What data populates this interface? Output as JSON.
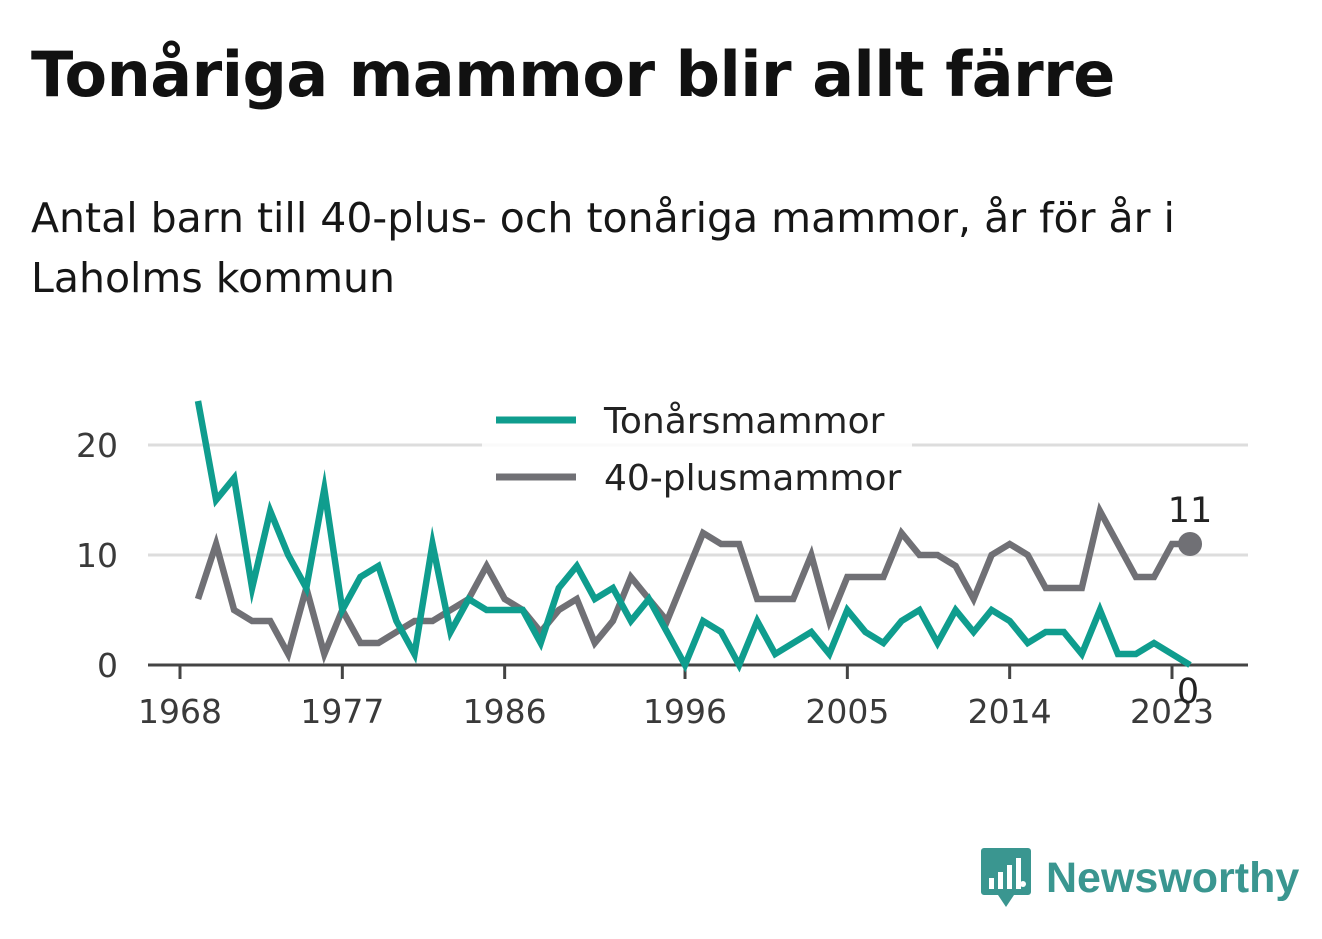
{
  "title": "Tonåriga mammor blir allt färre",
  "subtitle": "Antal barn till 40-plus- och tonåriga mammor, år för år i Laholms kommun",
  "brand": {
    "name": "Newsworthy",
    "icon": "newsworthy-logo-icon",
    "color": "#3a9690"
  },
  "colors": {
    "teen": "#0f9d8e",
    "forty": "#707075",
    "grid": "#dddddd",
    "axis": "#444444"
  },
  "chart_data": {
    "type": "line",
    "title": "",
    "xlabel": "",
    "ylabel": "",
    "x": [
      1969,
      1970,
      1971,
      1972,
      1973,
      1974,
      1975,
      1976,
      1977,
      1978,
      1979,
      1980,
      1981,
      1982,
      1983,
      1984,
      1985,
      1986,
      1987,
      1988,
      1989,
      1990,
      1991,
      1992,
      1993,
      1994,
      1995,
      1996,
      1997,
      1998,
      1999,
      2000,
      2001,
      2002,
      2003,
      2004,
      2005,
      2006,
      2007,
      2008,
      2009,
      2010,
      2011,
      2012,
      2013,
      2014,
      2015,
      2016,
      2017,
      2018,
      2019,
      2020,
      2021,
      2022,
      2023,
      2024
    ],
    "xticks": [
      1968,
      1977,
      1986,
      1996,
      2005,
      2014,
      2023
    ],
    "xticklabels": [
      "1968",
      "1977",
      "1986",
      "1996",
      "2005",
      "2014",
      "2023"
    ],
    "xlim": [
      1968,
      2027
    ],
    "yticks": [
      0,
      10,
      20
    ],
    "yticklabels": [
      "0",
      "10",
      "20"
    ],
    "ylim": [
      0,
      25
    ],
    "grid": "horizontal",
    "legend": "top-center",
    "series": [
      {
        "name": "Tonårsmammor",
        "color": "#0f9d8e",
        "values": [
          24,
          15,
          17,
          7,
          14,
          10,
          7,
          16,
          5,
          8,
          9,
          4,
          1,
          11,
          3,
          6,
          5,
          5,
          5,
          2,
          7,
          9,
          6,
          7,
          4,
          6,
          3,
          0,
          4,
          3,
          0,
          4,
          1,
          2,
          3,
          1,
          5,
          3,
          2,
          4,
          5,
          2,
          5,
          3,
          5,
          4,
          2,
          3,
          3,
          1,
          5,
          1,
          1,
          2,
          1,
          0
        ],
        "end_label": "0"
      },
      {
        "name": "40-plusmammor",
        "color": "#707075",
        "values": [
          6,
          11,
          5,
          4,
          4,
          1,
          7,
          1,
          5,
          2,
          2,
          3,
          4,
          4,
          5,
          6,
          9,
          6,
          5,
          3,
          5,
          6,
          2,
          4,
          8,
          6,
          4,
          8,
          12,
          11,
          11,
          6,
          6,
          6,
          10,
          4,
          8,
          8,
          8,
          12,
          10,
          10,
          9,
          6,
          10,
          11,
          10,
          7,
          7,
          7,
          14,
          11,
          8,
          8,
          11,
          11
        ],
        "end_label": "11"
      }
    ]
  }
}
